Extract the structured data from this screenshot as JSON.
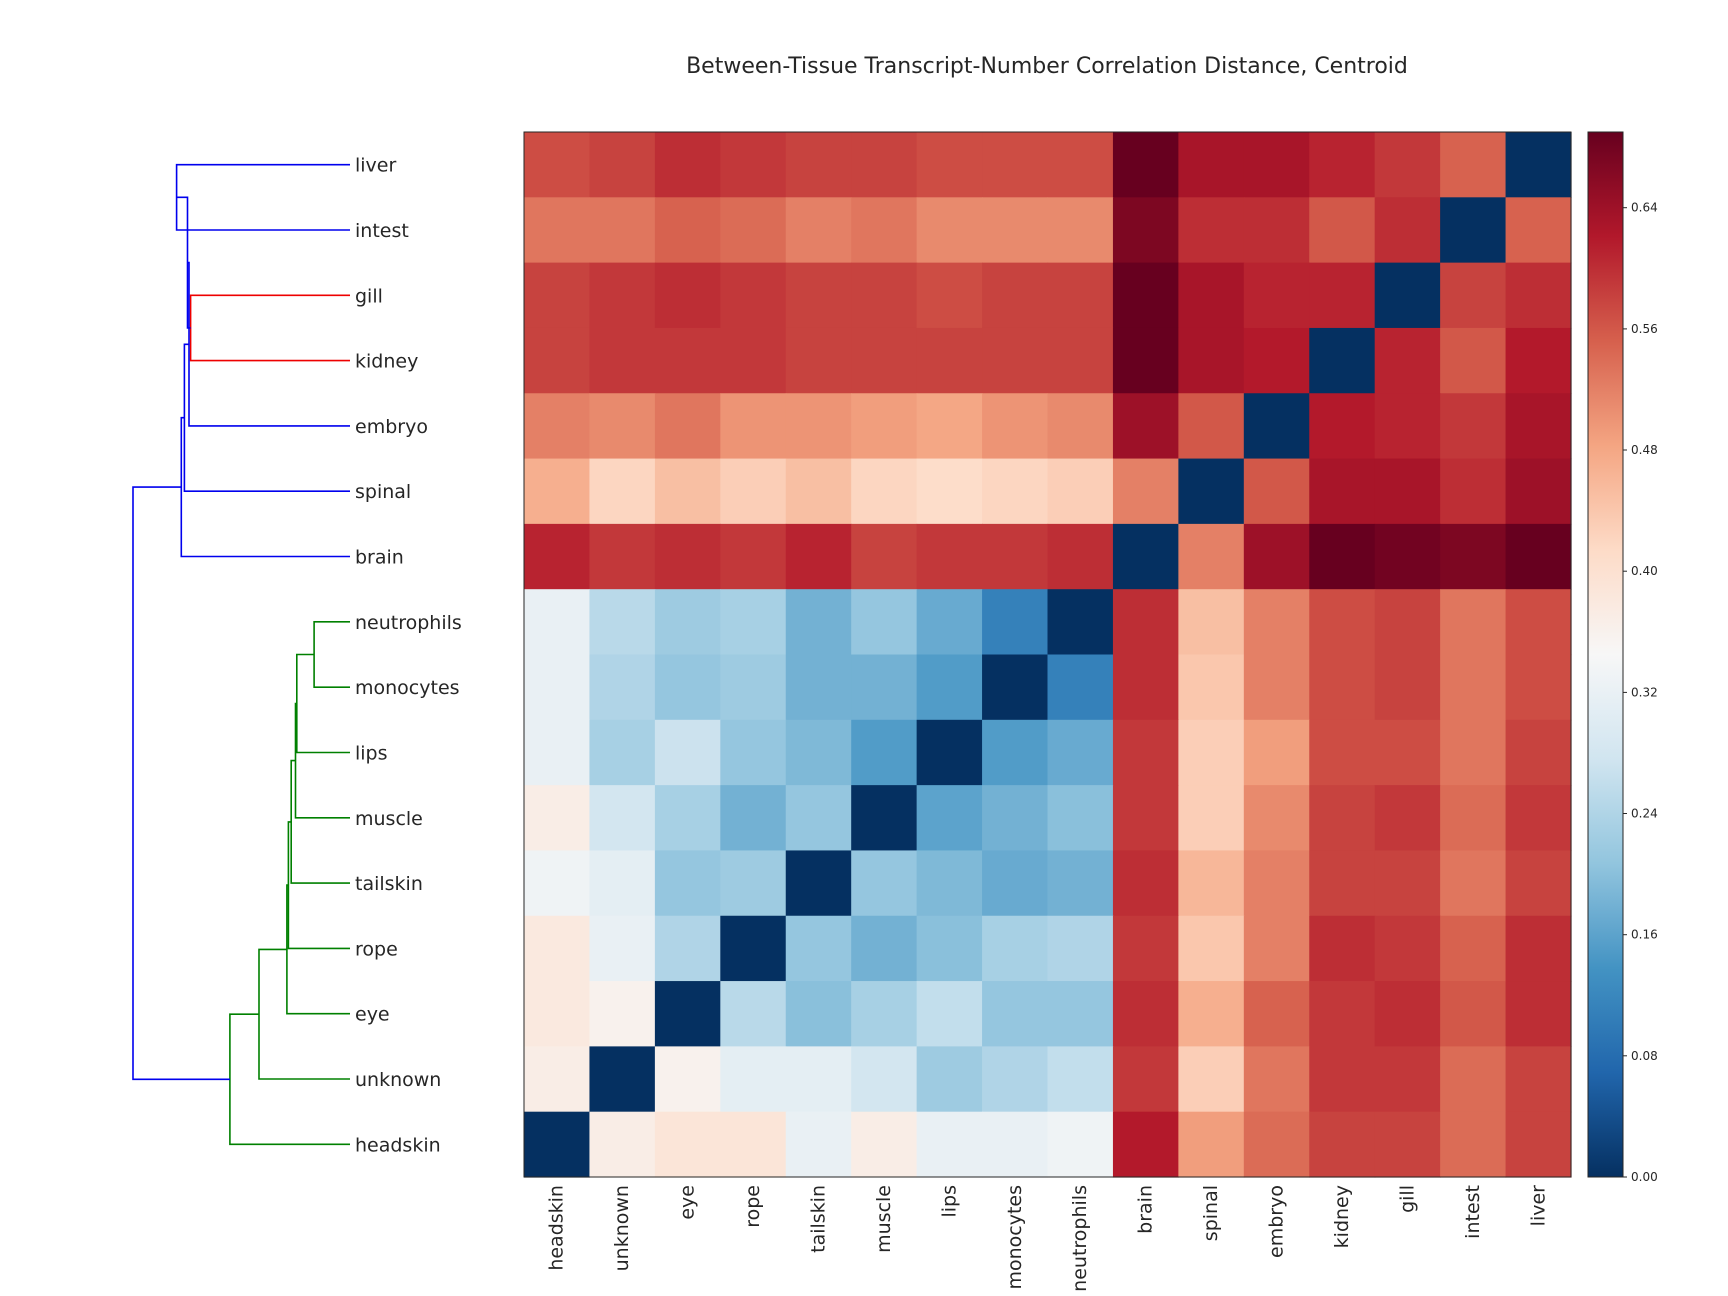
{
  "chart_data": {
    "type": "heatmap",
    "title": "Between-Tissue Transcript-Number Correlation Distance, Centroid",
    "xlabel": "",
    "ylabel": "",
    "row_labels": [
      "liver",
      "intest",
      "gill",
      "kidney",
      "embryo",
      "spinal",
      "brain",
      "neutrophils",
      "monocytes",
      "lips",
      "muscle",
      "tailskin",
      "rope",
      "eye",
      "unknown",
      "headskin"
    ],
    "col_labels": [
      "headskin",
      "unknown",
      "eye",
      "rope",
      "tailskin",
      "muscle",
      "lips",
      "monocytes",
      "neutrophils",
      "brain",
      "spinal",
      "embryo",
      "kidney",
      "gill",
      "intest",
      "liver"
    ],
    "values": [
      [
        0.57,
        0.58,
        0.6,
        0.59,
        0.58,
        0.58,
        0.57,
        0.57,
        0.57,
        0.69,
        0.63,
        0.63,
        0.61,
        0.59,
        0.55,
        0.0
      ],
      [
        0.53,
        0.53,
        0.55,
        0.54,
        0.52,
        0.53,
        0.51,
        0.51,
        0.51,
        0.67,
        0.6,
        0.6,
        0.56,
        0.6,
        0.0,
        0.55
      ],
      [
        0.58,
        0.59,
        0.6,
        0.59,
        0.58,
        0.58,
        0.57,
        0.58,
        0.58,
        0.69,
        0.63,
        0.61,
        0.61,
        0.0,
        0.58,
        0.6
      ],
      [
        0.58,
        0.59,
        0.59,
        0.59,
        0.58,
        0.58,
        0.58,
        0.58,
        0.58,
        0.69,
        0.63,
        0.62,
        0.0,
        0.61,
        0.56,
        0.62
      ],
      [
        0.52,
        0.51,
        0.53,
        0.5,
        0.5,
        0.49,
        0.48,
        0.5,
        0.51,
        0.64,
        0.56,
        0.0,
        0.62,
        0.61,
        0.59,
        0.63
      ],
      [
        0.47,
        0.42,
        0.45,
        0.43,
        0.45,
        0.42,
        0.41,
        0.42,
        0.43,
        0.52,
        0.0,
        0.56,
        0.63,
        0.63,
        0.6,
        0.64
      ],
      [
        0.61,
        0.59,
        0.6,
        0.59,
        0.61,
        0.58,
        0.59,
        0.59,
        0.6,
        0.0,
        0.52,
        0.64,
        0.69,
        0.68,
        0.67,
        0.69
      ],
      [
        0.32,
        0.25,
        0.22,
        0.23,
        0.18,
        0.21,
        0.17,
        0.11,
        0.0,
        0.6,
        0.45,
        0.52,
        0.57,
        0.58,
        0.53,
        0.57
      ],
      [
        0.32,
        0.24,
        0.21,
        0.22,
        0.18,
        0.18,
        0.15,
        0.0,
        0.11,
        0.6,
        0.44,
        0.52,
        0.57,
        0.58,
        0.53,
        0.57
      ],
      [
        0.32,
        0.23,
        0.27,
        0.21,
        0.19,
        0.15,
        0.0,
        0.15,
        0.17,
        0.59,
        0.43,
        0.49,
        0.57,
        0.57,
        0.53,
        0.58
      ],
      [
        0.37,
        0.28,
        0.23,
        0.18,
        0.21,
        0.0,
        0.16,
        0.18,
        0.2,
        0.59,
        0.43,
        0.51,
        0.58,
        0.59,
        0.54,
        0.59
      ],
      [
        0.33,
        0.31,
        0.21,
        0.22,
        0.0,
        0.21,
        0.19,
        0.17,
        0.18,
        0.6,
        0.46,
        0.52,
        0.58,
        0.58,
        0.53,
        0.58
      ],
      [
        0.38,
        0.32,
        0.24,
        0.0,
        0.21,
        0.18,
        0.2,
        0.23,
        0.24,
        0.59,
        0.44,
        0.52,
        0.6,
        0.59,
        0.55,
        0.6
      ],
      [
        0.38,
        0.36,
        0.0,
        0.25,
        0.2,
        0.23,
        0.26,
        0.21,
        0.21,
        0.6,
        0.47,
        0.55,
        0.59,
        0.6,
        0.56,
        0.6
      ],
      [
        0.37,
        0.0,
        0.36,
        0.31,
        0.31,
        0.28,
        0.22,
        0.24,
        0.26,
        0.59,
        0.43,
        0.53,
        0.59,
        0.59,
        0.54,
        0.58
      ],
      [
        0.0,
        0.37,
        0.39,
        0.39,
        0.32,
        0.37,
        0.32,
        0.32,
        0.33,
        0.62,
        0.49,
        0.54,
        0.58,
        0.58,
        0.54,
        0.58
      ]
    ],
    "vmin": 0.0,
    "vmax": 0.69,
    "colorbar_ticks": [
      "0.00",
      "0.08",
      "0.16",
      "0.24",
      "0.32",
      "0.40",
      "0.48",
      "0.56",
      "0.64"
    ],
    "colormap": "RdBu_r",
    "dendrogram": {
      "orientation": "left",
      "colors": {
        "above_threshold": "#0000ee",
        "cluster_1": "#ee0000",
        "cluster_2": "#008000"
      },
      "merges": [
        {
          "a": 0,
          "b": 1,
          "height": 0.56,
          "color": "#0000ee"
        },
        {
          "a": 2,
          "b": 3,
          "height": 0.515,
          "color": "#ee0000"
        },
        {
          "a": "m0",
          "b": "m1",
          "height": 0.525,
          "color": "#0000ee"
        },
        {
          "a": "m2",
          "b": 4,
          "height": 0.52,
          "color": "#0000ee"
        },
        {
          "a": "m3",
          "b": 5,
          "height": 0.535,
          "color": "#0000ee"
        },
        {
          "a": "m4",
          "b": 6,
          "height": 0.545,
          "color": "#0000ee"
        },
        {
          "a": 7,
          "b": 8,
          "height": 0.116,
          "color": "#008000"
        },
        {
          "a": "m6",
          "b": 9,
          "height": 0.172,
          "color": "#008000"
        },
        {
          "a": "m7",
          "b": 10,
          "height": 0.176,
          "color": "#008000"
        },
        {
          "a": "m8",
          "b": 11,
          "height": 0.19,
          "color": "#008000"
        },
        {
          "a": "m9",
          "b": 12,
          "height": 0.199,
          "color": "#008000"
        },
        {
          "a": "m10",
          "b": 13,
          "height": 0.204,
          "color": "#008000"
        },
        {
          "a": "m11",
          "b": 14,
          "height": 0.294,
          "color": "#008000"
        },
        {
          "a": "m12",
          "b": 15,
          "height": 0.388,
          "color": "#008000"
        },
        {
          "a": "m5",
          "b": "m13",
          "height": 0.701,
          "color": "#0000ee"
        }
      ]
    }
  }
}
